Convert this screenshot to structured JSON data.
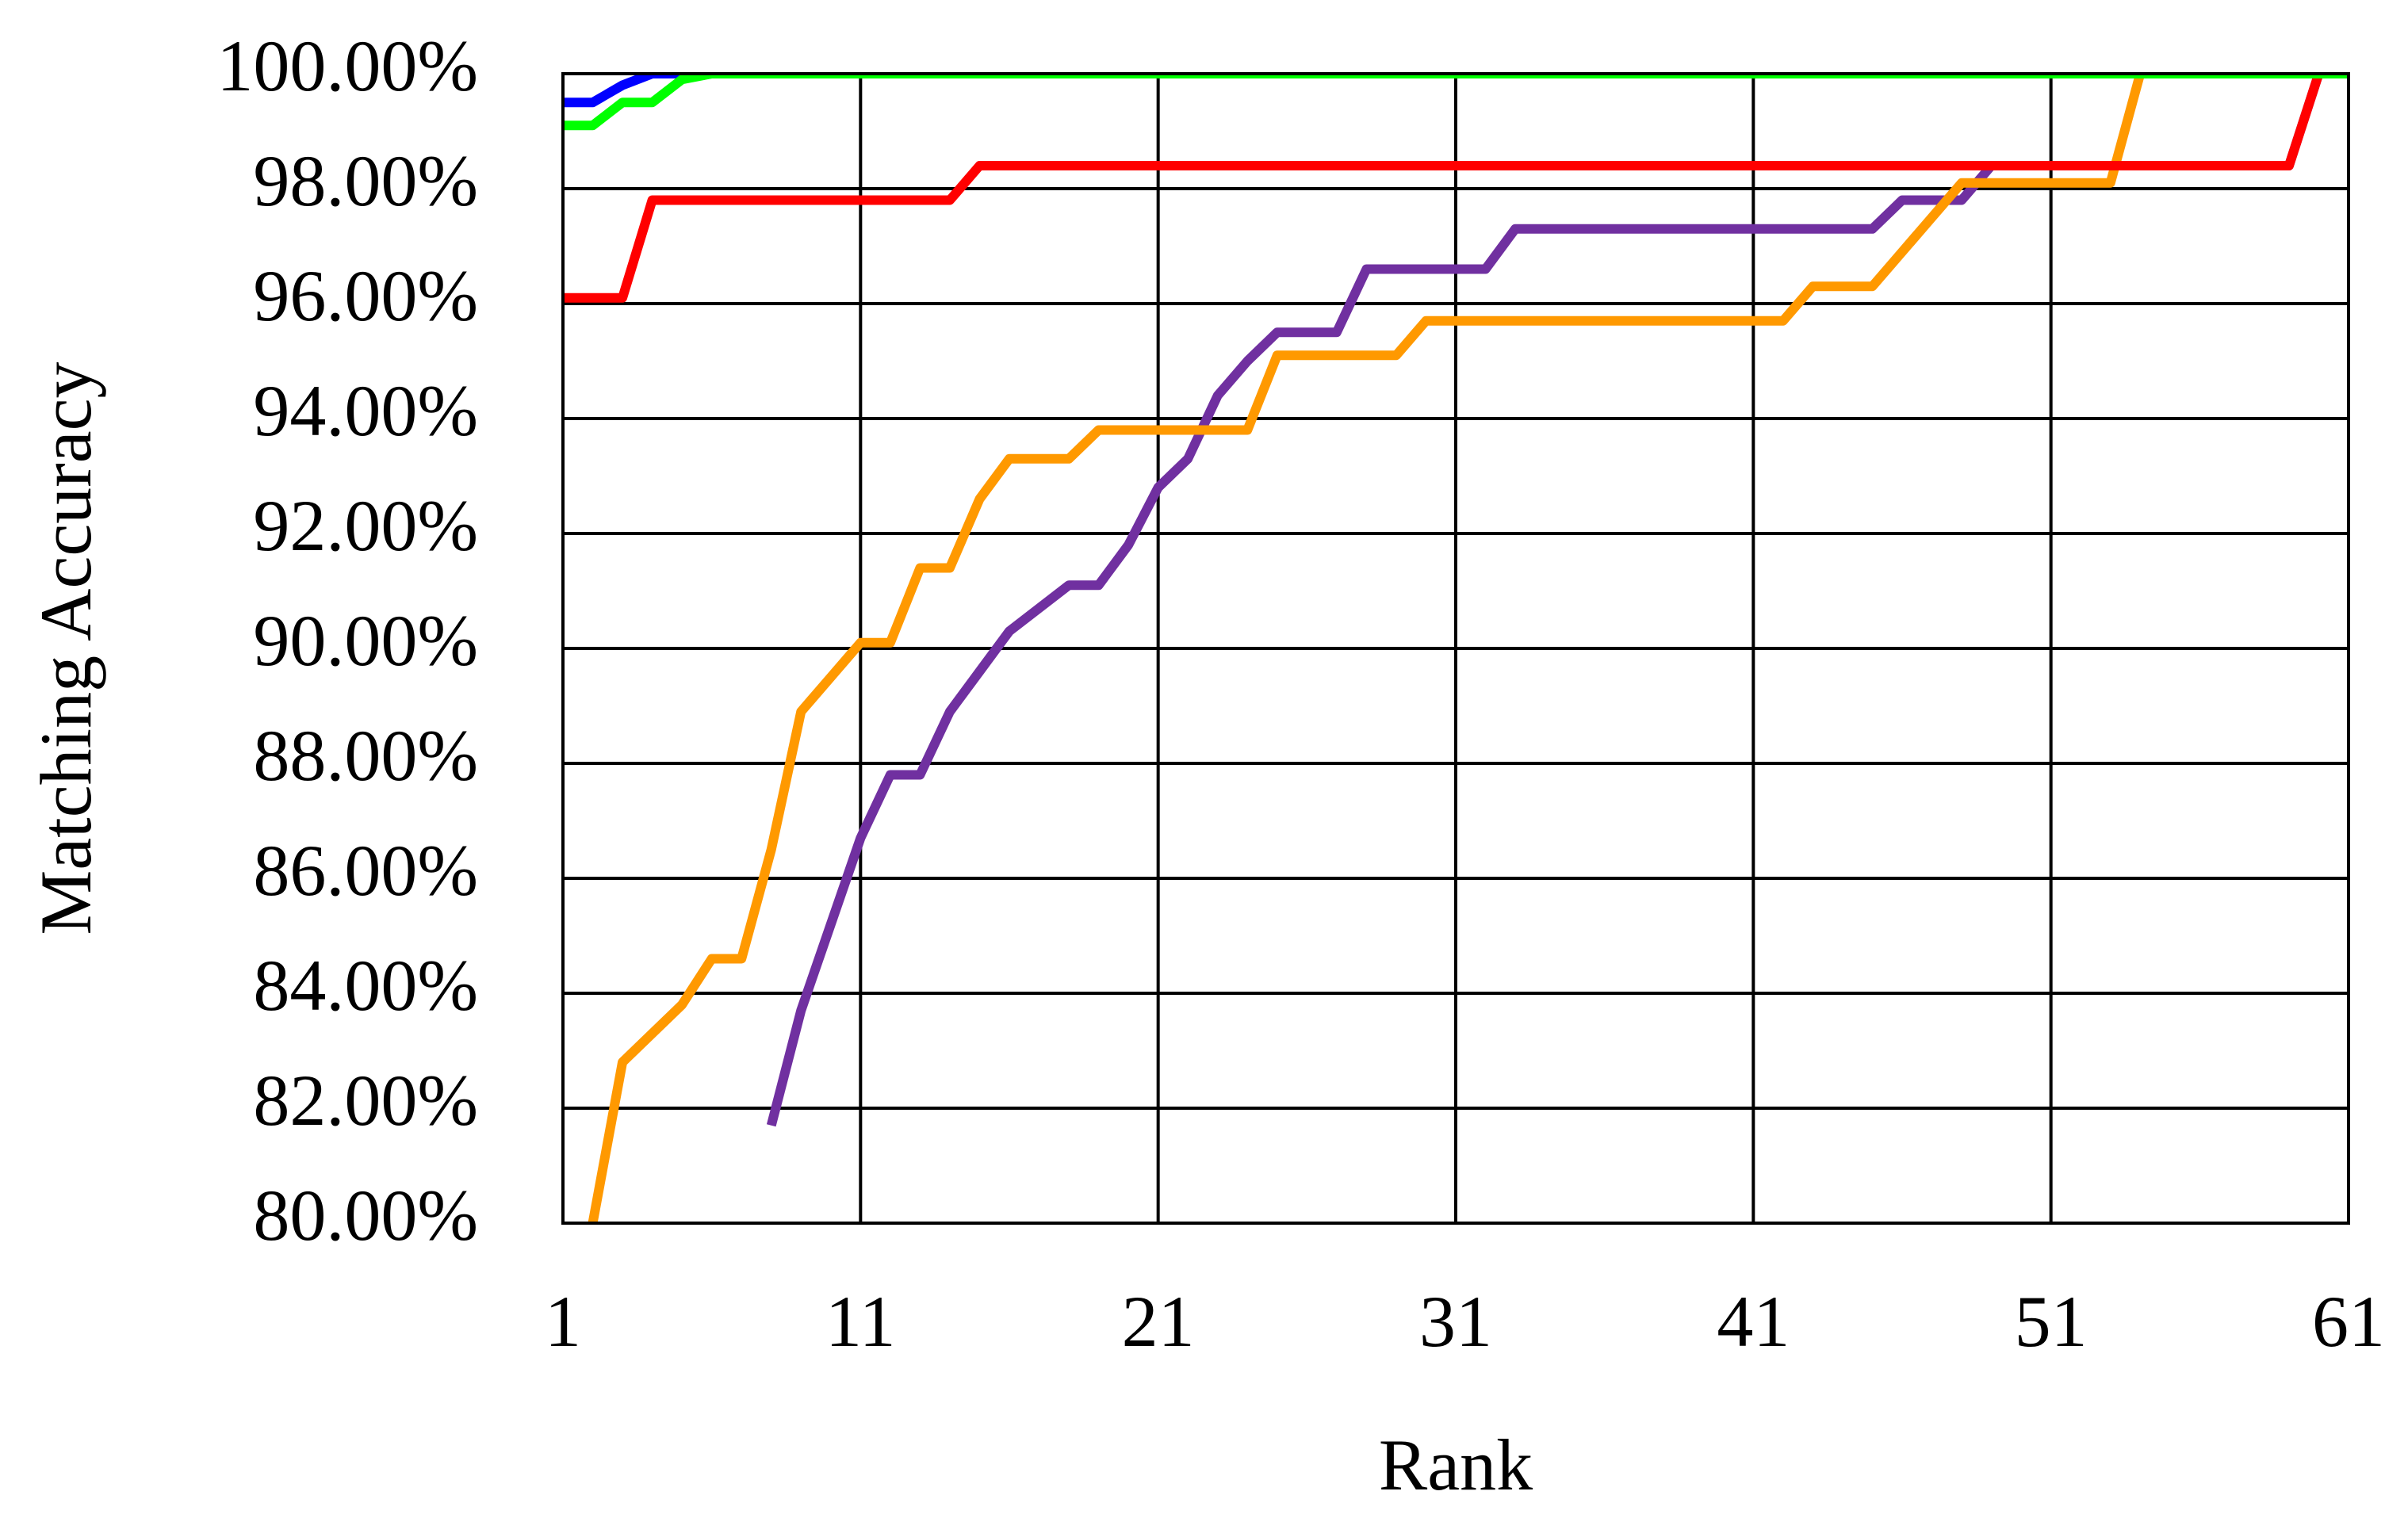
{
  "chart_data": {
    "type": "line",
    "x_label": "Rank",
    "y_label": "Matching Accuracy",
    "x": [
      1,
      2,
      3,
      4,
      5,
      6,
      7,
      8,
      9,
      10,
      11,
      12,
      13,
      14,
      15,
      16,
      17,
      18,
      19,
      20,
      21,
      22,
      23,
      24,
      25,
      26,
      27,
      28,
      29,
      30,
      31,
      32,
      33,
      34,
      35,
      36,
      37,
      38,
      39,
      40,
      41,
      42,
      43,
      44,
      45,
      46,
      47,
      48,
      49,
      50,
      51,
      52,
      53,
      54,
      55,
      56,
      57,
      58,
      59,
      60,
      61
    ],
    "series": [
      {
        "color": "#7030a0",
        "values": [
          null,
          null,
          null,
          null,
          null,
          null,
          null,
          81.7,
          83.7,
          85.2,
          86.7,
          87.8,
          87.8,
          88.9,
          89.6,
          90.3,
          90.7,
          91.1,
          91.1,
          91.8,
          92.8,
          93.3,
          94.4,
          95.0,
          95.5,
          95.5,
          95.5,
          96.6,
          96.6,
          96.6,
          96.6,
          96.6,
          97.3,
          97.3,
          97.3,
          97.3,
          97.3,
          97.3,
          97.3,
          97.3,
          97.3,
          97.3,
          97.3,
          97.3,
          97.3,
          97.8,
          97.8,
          97.8,
          98.4,
          98.4,
          98.4,
          98.4,
          98.4,
          98.4,
          98.4,
          98.4,
          98.4,
          98.4,
          98.4,
          100,
          100
        ]
      },
      {
        "color": "#ff9900",
        "values": [
          null,
          80.0,
          82.8,
          83.3,
          83.8,
          84.6,
          84.6,
          86.5,
          88.9,
          89.5,
          90.1,
          90.1,
          91.4,
          91.4,
          92.6,
          93.3,
          93.3,
          93.3,
          93.8,
          93.8,
          93.8,
          93.8,
          93.8,
          93.8,
          95.1,
          95.1,
          95.1,
          95.1,
          95.1,
          95.7,
          95.7,
          95.7,
          95.7,
          95.7,
          95.7,
          95.7,
          95.7,
          95.7,
          95.7,
          95.7,
          95.7,
          95.7,
          96.3,
          96.3,
          96.3,
          96.9,
          97.5,
          98.1,
          98.1,
          98.1,
          98.1,
          98.1,
          98.1,
          100,
          100,
          100,
          100,
          100,
          100,
          100,
          100
        ]
      },
      {
        "color": "#ff0000",
        "values": [
          96.1,
          96.1,
          96.1,
          97.8,
          97.8,
          97.8,
          97.8,
          97.8,
          97.8,
          97.8,
          97.8,
          97.8,
          97.8,
          97.8,
          98.4,
          98.4,
          98.4,
          98.4,
          98.4,
          98.4,
          98.4,
          98.4,
          98.4,
          98.4,
          98.4,
          98.4,
          98.4,
          98.4,
          98.4,
          98.4,
          98.4,
          98.4,
          98.4,
          98.4,
          98.4,
          98.4,
          98.4,
          98.4,
          98.4,
          98.4,
          98.4,
          98.4,
          98.4,
          98.4,
          98.4,
          98.4,
          98.4,
          98.4,
          98.4,
          98.4,
          98.4,
          98.4,
          98.4,
          98.4,
          98.4,
          98.4,
          98.4,
          98.4,
          98.4,
          100,
          100
        ]
      },
      {
        "color": "#0000ff",
        "values": [
          99.5,
          99.5,
          99.8,
          100,
          100,
          100,
          100,
          100,
          100,
          100,
          100,
          100,
          100,
          100,
          100,
          100,
          100,
          100,
          100,
          100,
          100,
          100,
          100,
          100,
          100,
          100,
          100,
          100,
          100,
          100,
          100,
          100,
          100,
          100,
          100,
          100,
          100,
          100,
          100,
          100,
          100,
          100,
          100,
          100,
          100,
          100,
          100,
          100,
          100,
          100,
          100,
          100,
          100,
          100,
          100,
          100,
          100,
          100,
          100,
          100,
          100
        ]
      },
      {
        "color": "#00ff00",
        "values": [
          99.1,
          99.1,
          99.5,
          99.5,
          99.9,
          100,
          100,
          100,
          100,
          100,
          100,
          100,
          100,
          100,
          100,
          100,
          100,
          100,
          100,
          100,
          100,
          100,
          100,
          100,
          100,
          100,
          100,
          100,
          100,
          100,
          100,
          100,
          100,
          100,
          100,
          100,
          100,
          100,
          100,
          100,
          100,
          100,
          100,
          100,
          100,
          100,
          100,
          100,
          100,
          100,
          100,
          100,
          100,
          100,
          100,
          100,
          100,
          100,
          100,
          100,
          100
        ]
      }
    ],
    "xlim": [
      1,
      61
    ],
    "xticks": [
      1,
      11,
      21,
      31,
      41,
      51,
      61
    ],
    "ylim": [
      80,
      100
    ],
    "yticks": [
      {
        "value": 80,
        "label": "80.00%"
      },
      {
        "value": 82,
        "label": "82.00%"
      },
      {
        "value": 84,
        "label": "84.00%"
      },
      {
        "value": 86,
        "label": "86.00%"
      },
      {
        "value": 88,
        "label": "88.00%"
      },
      {
        "value": 90,
        "label": "90.00%"
      },
      {
        "value": 92,
        "label": "92.00%"
      },
      {
        "value": 94,
        "label": "94.00%"
      },
      {
        "value": 96,
        "label": "96.00%"
      },
      {
        "value": 98,
        "label": "98.00%"
      },
      {
        "value": 100,
        "label": "100.00%"
      }
    ],
    "grid": true
  }
}
